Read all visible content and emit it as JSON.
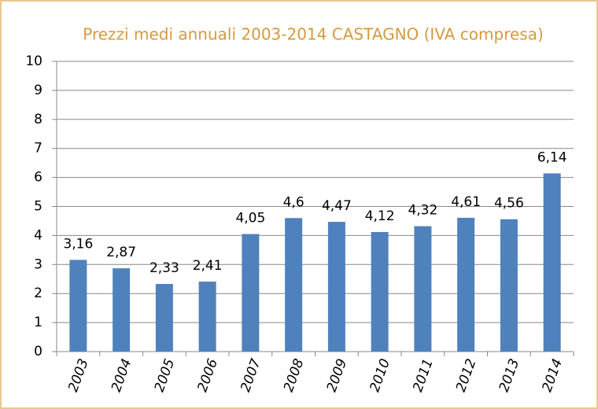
{
  "chart_data": {
    "type": "bar",
    "title": "Prezzi medi annuali 2003-2014 CASTAGNO (IVA compresa)",
    "categories": [
      "2003",
      "2004",
      "2005",
      "2006",
      "2007",
      "2008",
      "2009",
      "2010",
      "2011",
      "2012",
      "2013",
      "2014"
    ],
    "values": [
      3.16,
      2.87,
      2.33,
      2.41,
      4.05,
      4.6,
      4.47,
      4.12,
      4.32,
      4.61,
      4.56,
      6.14
    ],
    "value_labels": [
      "3,16",
      "2,87",
      "2,33",
      "2,41",
      "4,05",
      "4,6",
      "4,47",
      "4,12",
      "4,32",
      "4,61",
      "4,56",
      "6,14"
    ],
    "color": "#4f81bd",
    "ylim": [
      0,
      10
    ],
    "yticks": [
      0,
      1,
      2,
      3,
      4,
      5,
      6,
      7,
      8,
      9,
      10
    ],
    "grid": true
  }
}
